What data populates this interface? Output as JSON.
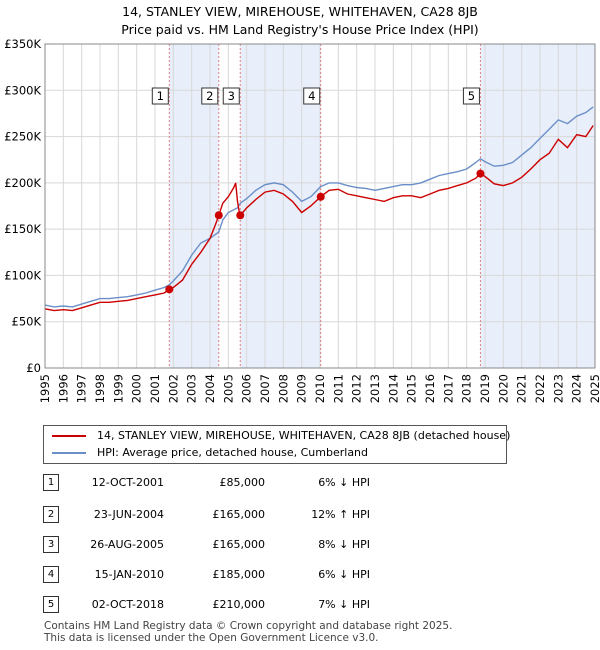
{
  "title_line1": "14, STANLEY VIEW, MIREHOUSE, WHITEHAVEN, CA28 8JB",
  "title_line2": "Price paid vs. HM Land Registry's House Price Index (HPI)",
  "chart_data": {
    "type": "line",
    "title": "14, STANLEY VIEW, MIREHOUSE, WHITEHAVEN, CA28 8JB — Price paid vs. HM Land Registry's House Price Index (HPI)",
    "xlim": [
      1995,
      2025
    ],
    "ylim": [
      0,
      350000
    ],
    "y_ticks": [
      {
        "value": 0,
        "label": "£0"
      },
      {
        "value": 50000,
        "label": "£50K"
      },
      {
        "value": 100000,
        "label": "£100K"
      },
      {
        "value": 150000,
        "label": "£150K"
      },
      {
        "value": 200000,
        "label": "£200K"
      },
      {
        "value": 250000,
        "label": "£250K"
      },
      {
        "value": 300000,
        "label": "£300K"
      },
      {
        "value": 350000,
        "label": "£350K"
      }
    ],
    "x_ticks": [
      "1995",
      "1996",
      "1997",
      "1998",
      "1999",
      "2000",
      "2001",
      "2002",
      "2003",
      "2004",
      "2005",
      "2006",
      "2007",
      "2008",
      "2009",
      "2010",
      "2011",
      "2012",
      "2013",
      "2014",
      "2015",
      "2016",
      "2017",
      "2018",
      "2019",
      "2020",
      "2021",
      "2022",
      "2023",
      "2024",
      "2025"
    ],
    "grid": true,
    "series": [
      {
        "name": "14, STANLEY VIEW, MIREHOUSE, WHITEHAVEN, CA28 8JB (detached house)",
        "color": "#cc0000",
        "points": [
          [
            1995.0,
            64000
          ],
          [
            1995.5,
            62000
          ],
          [
            1996.0,
            63000
          ],
          [
            1996.5,
            62000
          ],
          [
            1997.0,
            65000
          ],
          [
            1997.5,
            68000
          ],
          [
            1998.0,
            71000
          ],
          [
            1998.5,
            71000
          ],
          [
            1999.0,
            72000
          ],
          [
            1999.5,
            73000
          ],
          [
            2000.0,
            75000
          ],
          [
            2000.5,
            77000
          ],
          [
            2001.0,
            79000
          ],
          [
            2001.5,
            81000
          ],
          [
            2001.78,
            85000
          ],
          [
            2002.0,
            87000
          ],
          [
            2002.5,
            95000
          ],
          [
            2003.0,
            112000
          ],
          [
            2003.5,
            125000
          ],
          [
            2004.0,
            140000
          ],
          [
            2004.3,
            155000
          ],
          [
            2004.48,
            165000
          ],
          [
            2004.7,
            178000
          ],
          [
            2005.0,
            185000
          ],
          [
            2005.3,
            195000
          ],
          [
            2005.4,
            200000
          ],
          [
            2005.5,
            180000
          ],
          [
            2005.6,
            168000
          ],
          [
            2005.65,
            165000
          ],
          [
            2006.0,
            173000
          ],
          [
            2006.5,
            182000
          ],
          [
            2007.0,
            190000
          ],
          [
            2007.5,
            192000
          ],
          [
            2008.0,
            188000
          ],
          [
            2008.5,
            180000
          ],
          [
            2009.0,
            168000
          ],
          [
            2009.5,
            175000
          ],
          [
            2010.04,
            185000
          ],
          [
            2010.5,
            192000
          ],
          [
            2011.0,
            193000
          ],
          [
            2011.5,
            188000
          ],
          [
            2012.0,
            186000
          ],
          [
            2012.5,
            184000
          ],
          [
            2013.0,
            182000
          ],
          [
            2013.5,
            180000
          ],
          [
            2014.0,
            184000
          ],
          [
            2014.5,
            186000
          ],
          [
            2015.0,
            186000
          ],
          [
            2015.5,
            184000
          ],
          [
            2016.0,
            188000
          ],
          [
            2016.5,
            192000
          ],
          [
            2017.0,
            194000
          ],
          [
            2017.5,
            197000
          ],
          [
            2018.0,
            200000
          ],
          [
            2018.5,
            205000
          ],
          [
            2018.75,
            210000
          ],
          [
            2019.0,
            207000
          ],
          [
            2019.5,
            199000
          ],
          [
            2020.0,
            197000
          ],
          [
            2020.5,
            200000
          ],
          [
            2021.0,
            206000
          ],
          [
            2021.5,
            215000
          ],
          [
            2022.0,
            225000
          ],
          [
            2022.5,
            232000
          ],
          [
            2023.0,
            247000
          ],
          [
            2023.5,
            238000
          ],
          [
            2024.0,
            252000
          ],
          [
            2024.5,
            250000
          ],
          [
            2024.9,
            262000
          ]
        ]
      },
      {
        "name": "HPI: Average price, detached house, Cumberland",
        "color": "#6a8fc8",
        "points": [
          [
            1995.0,
            68000
          ],
          [
            1995.5,
            66000
          ],
          [
            1996.0,
            67000
          ],
          [
            1996.5,
            66000
          ],
          [
            1997.0,
            69000
          ],
          [
            1997.5,
            72000
          ],
          [
            1998.0,
            75000
          ],
          [
            1998.5,
            75000
          ],
          [
            1999.0,
            76000
          ],
          [
            1999.5,
            77000
          ],
          [
            2000.0,
            79000
          ],
          [
            2000.5,
            81000
          ],
          [
            2001.0,
            84000
          ],
          [
            2001.5,
            87000
          ],
          [
            2001.78,
            90000
          ],
          [
            2002.0,
            94000
          ],
          [
            2002.5,
            105000
          ],
          [
            2003.0,
            122000
          ],
          [
            2003.5,
            135000
          ],
          [
            2004.0,
            140000
          ],
          [
            2004.48,
            147000
          ],
          [
            2004.7,
            160000
          ],
          [
            2005.0,
            168000
          ],
          [
            2005.5,
            173000
          ],
          [
            2005.65,
            178000
          ],
          [
            2006.0,
            183000
          ],
          [
            2006.5,
            192000
          ],
          [
            2007.0,
            198000
          ],
          [
            2007.5,
            200000
          ],
          [
            2008.0,
            198000
          ],
          [
            2008.5,
            190000
          ],
          [
            2009.0,
            180000
          ],
          [
            2009.5,
            185000
          ],
          [
            2010.04,
            196000
          ],
          [
            2010.5,
            200000
          ],
          [
            2011.0,
            200000
          ],
          [
            2011.5,
            197000
          ],
          [
            2012.0,
            195000
          ],
          [
            2012.5,
            194000
          ],
          [
            2013.0,
            192000
          ],
          [
            2013.5,
            194000
          ],
          [
            2014.0,
            196000
          ],
          [
            2014.5,
            198000
          ],
          [
            2015.0,
            198000
          ],
          [
            2015.5,
            200000
          ],
          [
            2016.0,
            204000
          ],
          [
            2016.5,
            208000
          ],
          [
            2017.0,
            210000
          ],
          [
            2017.5,
            212000
          ],
          [
            2018.0,
            215000
          ],
          [
            2018.5,
            222000
          ],
          [
            2018.75,
            226000
          ],
          [
            2019.0,
            223000
          ],
          [
            2019.5,
            218000
          ],
          [
            2020.0,
            219000
          ],
          [
            2020.5,
            222000
          ],
          [
            2021.0,
            230000
          ],
          [
            2021.5,
            238000
          ],
          [
            2022.0,
            248000
          ],
          [
            2022.5,
            258000
          ],
          [
            2023.0,
            268000
          ],
          [
            2023.5,
            264000
          ],
          [
            2024.0,
            272000
          ],
          [
            2024.5,
            276000
          ],
          [
            2024.9,
            282000
          ]
        ]
      }
    ],
    "sales": [
      {
        "label": "1",
        "x": 2001.78,
        "y": 85000,
        "date": "12-OCT-2001",
        "price": "£85,000",
        "hpi": "6% ↓ HPI"
      },
      {
        "label": "2",
        "x": 2004.48,
        "y": 165000,
        "date": "23-JUN-2004",
        "price": "£165,000",
        "hpi": "12% ↑ HPI"
      },
      {
        "label": "3",
        "x": 2005.65,
        "y": 165000,
        "date": "26-AUG-2005",
        "price": "£165,000",
        "hpi": "8% ↓ HPI"
      },
      {
        "label": "4",
        "x": 2010.04,
        "y": 185000,
        "date": "15-JAN-2010",
        "price": "£185,000",
        "hpi": "6% ↓ HPI"
      },
      {
        "label": "5",
        "x": 2018.75,
        "y": 210000,
        "date": "02-OCT-2018",
        "price": "£210,000",
        "hpi": "7% ↓ HPI"
      }
    ],
    "colors": {
      "red": "#cc0000",
      "blue": "#6a8fc8",
      "shade": "#e8eefa",
      "marker_line": "#e08080"
    }
  },
  "legend": {
    "red_label": "14, STANLEY VIEW, MIREHOUSE, WHITEHAVEN, CA28 8JB (detached house)",
    "blue_label": "HPI: Average price, detached house, Cumberland"
  },
  "footer": {
    "line1": "Contains HM Land Registry data © Crown copyright and database right 2025.",
    "line2": "This data is licensed under the Open Government Licence v3.0."
  }
}
